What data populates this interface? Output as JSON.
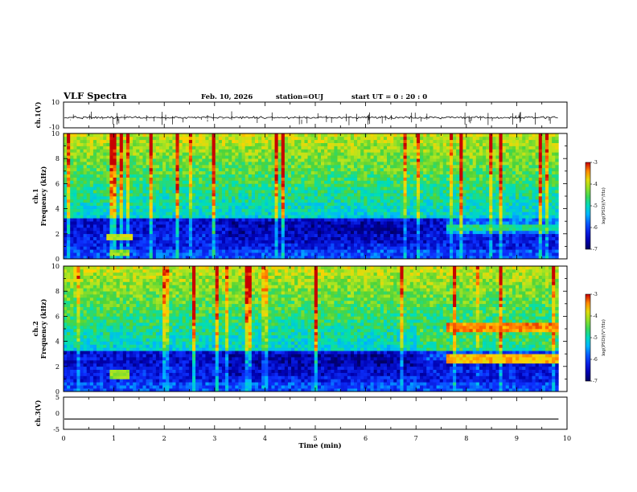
{
  "header": {
    "title": "VLF Spectra",
    "date": "Feb. 10, 2026",
    "station": "station=OUJ",
    "start": "start  UT =   0 : 20 : 0"
  },
  "chart_data": {
    "type": "heatmap",
    "title": "VLF Spectra",
    "xlabel": "Time  (min)",
    "xlim": [
      0,
      10
    ],
    "x_ticks": [
      "0",
      "1",
      "2",
      "3",
      "4",
      "5",
      "6",
      "7",
      "8",
      "9",
      "10"
    ],
    "data_end_min": 9.83,
    "panels": [
      {
        "id": "ch1-waveform",
        "type": "line",
        "ylabel": "ch.1(V)",
        "ylim": [
          -10,
          10
        ],
        "y_ticks": [
          "10",
          "-10"
        ],
        "baseline": -2,
        "noise_amplitude": 0.6
      },
      {
        "id": "ch1-spectrogram",
        "type": "heatmap",
        "ylabel_top": "ch.1",
        "ylabel": "Frequency  (kHz)",
        "ylim": [
          0,
          10
        ],
        "y_ticks": [
          "0",
          "2",
          "4",
          "6",
          "8",
          "10"
        ],
        "colorbar": {
          "label": "log(PSD)(V²/Hz)",
          "range": [
            -7,
            -3
          ],
          "ticks": [
            "-3",
            "-4",
            "-5",
            "-6",
            "-7"
          ]
        },
        "features": [
          {
            "name": "hiss band",
            "freq_khz": [
              1.6,
              1.85
            ],
            "time_min": [
              0.85,
              1.35
            ],
            "level": 0.75
          },
          {
            "name": "low band",
            "freq_khz": [
              0.45,
              0.65
            ],
            "time_min": [
              0.9,
              1.3
            ],
            "level": 0.7
          },
          {
            "name": "emission",
            "freq_khz": [
              2.3,
              2.6
            ],
            "time_min": [
              7.6,
              9.8
            ],
            "level": 0.55
          }
        ]
      },
      {
        "id": "ch2-spectrogram",
        "type": "heatmap",
        "ylabel_top": "ch.2",
        "ylabel": "Frequency  (kHz)",
        "ylim": [
          0,
          10
        ],
        "y_ticks": [
          "0",
          "2",
          "4",
          "6",
          "8",
          "10"
        ],
        "colorbar": {
          "label": "log(PSD)(V²/Hz)",
          "range": [
            -7,
            -3
          ],
          "ticks": [
            "-3",
            "-4",
            "-5",
            "-6",
            "-7"
          ]
        },
        "features": [
          {
            "name": "emission upper",
            "freq_khz": [
              4.9,
              5.3
            ],
            "time_min": [
              7.6,
              9.8
            ],
            "level": 0.9
          },
          {
            "name": "emission lower",
            "freq_khz": [
              2.4,
              2.8
            ],
            "time_min": [
              7.6,
              9.8
            ],
            "level": 0.85
          },
          {
            "name": "low band",
            "freq_khz": [
              1.2,
              1.5
            ],
            "time_min": [
              0.9,
              1.3
            ],
            "level": 0.7
          }
        ]
      },
      {
        "id": "ch3-waveform",
        "type": "line",
        "ylabel": "ch.3(V)",
        "ylim": [
          -5,
          5
        ],
        "y_ticks": [
          "5",
          "0",
          "-5"
        ],
        "baseline": -1.8,
        "noise_amplitude": 0
      }
    ]
  }
}
